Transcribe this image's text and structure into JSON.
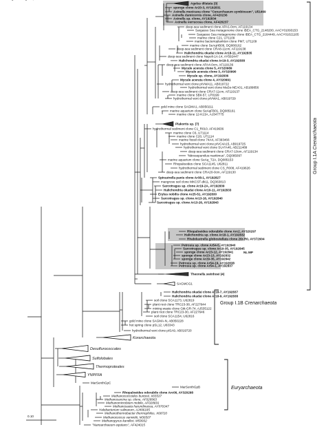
{
  "groups": {
    "i1a_prefix": "Group I.1A ",
    "i1a_taxon": "Crenarchaeota",
    "i1b_prefix": "Group I.1B ",
    "i1b_taxon": "Crenarchaeota",
    "euryarchaeota": "Euryarchaeota"
  },
  "annotations": {
    "nl": "NL",
    "mp": "MP",
    "scale": "0.10"
  },
  "leaves": [
    {
      "label": "Agelas dilatata (3)",
      "style": "bold",
      "collapsed": true
    },
    {
      "label": "sponge clone Ar20-3, AY192831",
      "style": "bold"
    },
    {
      "label": "Axinella mexicana clone \"Cenarchaeum symbiosum\", U51469",
      "style": "bold"
    },
    {
      "label": "Axinella damicornis clone, AF420236",
      "style": "bold"
    },
    {
      "label": "Axinella sp. clone, AY192834",
      "style": "bold"
    },
    {
      "label": "Axinella verrucosa clone, AF420237",
      "style": "bold"
    },
    {
      "label": "deep-sea sediment clone APA1-0cm, AF119134",
      "style": "plain"
    },
    {
      "label": "Sargasso Sea metagenome clone IBEA_CTG_2148200, AACY01093153",
      "style": "plain"
    },
    {
      "label": "Sargasso Sea metagenome clone IBEA_CTG_2164449, AACY01021105",
      "style": "plain"
    },
    {
      "label": "marine clone C21, U71109",
      "style": "plain"
    },
    {
      "label": "marine bacterioplankton clone PM7, U71109",
      "style": "plain"
    },
    {
      "label": "marine clone SeAqHB06, DQ080162",
      "style": "plain"
    },
    {
      "label": "deep-sea sediment clone CRA8-11cm, AF119138",
      "style": "plain"
    },
    {
      "label": "Halichondria okadai clone Ar18-11, AY192835",
      "style": "bold"
    },
    {
      "label": "deep-sea sediment clone Napoli-1A-14, AY592447",
      "style": "plain"
    },
    {
      "label": "Halichondria okadai clone Ar19-3, AY192838",
      "style": "bold"
    },
    {
      "label": "deep-sea sediment clone APA4-0cm, AF119136",
      "style": "plain"
    },
    {
      "label": "Mycale acerata clone 5, AY320989",
      "style": "bold"
    },
    {
      "label": "Mycale acerata clone 3, AY320990",
      "style": "bold"
    },
    {
      "label": "Mycale sp. clone, AY192836",
      "style": "bold"
    },
    {
      "label": "Mycale acerata clone 4, AY320991",
      "style": "bold"
    },
    {
      "label": "hydrothermal vent clone pIVWA11, AB019722",
      "style": "plain"
    },
    {
      "label": "hydrothermal vent clone MaSo-NEA01, AB189856",
      "style": "plain"
    },
    {
      "label": "deep-sea sediment clone CRA7-11cm, AF119137",
      "style": "plain"
    },
    {
      "label": "marine clone SBII-57, U78199",
      "style": "plain"
    },
    {
      "label": "hydrothermal vent clone pIVWA1, AB019729",
      "style": "plain"
    },
    {
      "label": "gold mine clone SAGMA1, AB050211",
      "style": "plain"
    },
    {
      "label": "marine aquarium clone SeAqFB01, DQ085161",
      "style": "plain"
    },
    {
      "label": "marine clone 12-K13A, AJ347775",
      "style": "plain"
    },
    {
      "label": "Plakortis sp. (7)",
      "style": "bold",
      "collapsed": true
    },
    {
      "label": "hydrothermal sediment clone C1_R010, AF419636",
      "style": "plain"
    },
    {
      "label": "marine clone C6, U71114",
      "style": "plain"
    },
    {
      "label": "marine clone C20, U71114",
      "style": "plain"
    },
    {
      "label": "marine fossil clone 74A4, AF393466",
      "style": "plain"
    },
    {
      "label": "hydrothermal vent clone pIVC4A15, AB019725",
      "style": "plain"
    },
    {
      "label": "hydrothermal vent clone SU-FA46, AB211489",
      "style": "plain"
    },
    {
      "label": "deep-sea sediment clone CRA7-10cm, AF119134",
      "style": "plain"
    },
    {
      "label": "\"Nitrosopumilus maritimus\", DQ085097",
      "style": "plain"
    },
    {
      "label": "marine aquarium clone SeAq_T2A, DQ085153",
      "style": "plain"
    },
    {
      "label": "Rhopaloeides clone SCA1145, U62811",
      "style": "plain"
    },
    {
      "label": "hydrothermal sediment clone CS_R008, AF419626",
      "style": "plain"
    },
    {
      "label": "deep-sea sediment clone CRA20-0cm, AF119130",
      "style": "plain"
    },
    {
      "label": "Spirastrella panis clone Ar38-1, AY192827",
      "style": "bold"
    },
    {
      "label": "mangrove soil clone MKCST-dk11, DQ363813",
      "style": "plain"
    },
    {
      "label": "Sarcotragus sp. clone Ar19-2A, AY192839",
      "style": "bold"
    },
    {
      "label": "Halichondria okadai clone Ar10-11, AY192833",
      "style": "bold"
    },
    {
      "label": "Erylus nobilis clone Ar25-51, AY192830",
      "style": "bold"
    },
    {
      "label": "Sarcotragus sp. clone Ar13-16, AY192840",
      "style": "bold"
    },
    {
      "label": "Sarcotragus sp. clone Ar13-26, AY192843",
      "style": "bold"
    },
    {
      "label": "Rhopaloeides odorabile clone Arc2, AY320297",
      "style": "bold"
    },
    {
      "label": "Halichondria sp. clone Ar18-1, AY192832",
      "style": "bold"
    },
    {
      "label": "Rhabdastrella globostellata clone 26r-R0, AY372904",
      "style": "bold"
    },
    {
      "label": "Petrosia sp. clone Ar54-5, AY192840",
      "style": "bold"
    },
    {
      "label": "Sarcotragus sp. clone Ar19-35, AY192845",
      "style": "bold"
    },
    {
      "label": "sponge clone Ar23-12, AY192841",
      "style": "bold"
    },
    {
      "label": "sponge clone Ar23-13, AY192832",
      "style": "bold"
    },
    {
      "label": "sponge clone Ar29-35, AY192842",
      "style": "bold"
    },
    {
      "label": "Petrosia sp. clone Ar54-19, AY192838",
      "style": "bold"
    },
    {
      "label": "Petrosia sp. clone Ar54-1, AY192837",
      "style": "bold"
    },
    {
      "label": "Theonella swinhoei (4)",
      "style": "bold",
      "collapsed": true
    },
    {
      "label": "SAGMCG1",
      "style": "plain",
      "collapsed": true
    },
    {
      "label": "Halichondria okadai clone Ar18-7, AY192837",
      "style": "bold"
    },
    {
      "label": "Halichondria okadai clone Ar18-9, AY192838",
      "style": "bold"
    },
    {
      "label": "soil clone SCA1173, U62819",
      "style": "plain"
    },
    {
      "label": "plant root clone TRC23-38, AF227644",
      "style": "plain"
    },
    {
      "label": "mining waste clone Gitt-GR-74, AJ535122",
      "style": "plain"
    },
    {
      "label": "plant root clone TRC23-30, AF227646",
      "style": "plain"
    },
    {
      "label": "soil clone SCA1154, U62816",
      "style": "plain"
    },
    {
      "label": "gold mine clone SAGMA-N, AB050228",
      "style": "plain"
    },
    {
      "label": "hot spring clone pSL12, U63343",
      "style": "plain"
    },
    {
      "label": "hydrothermal vent clone pISA9, AB019720",
      "style": "plain"
    },
    {
      "label": "Korarchaeota",
      "style": "italic",
      "collapsed": true
    },
    {
      "label": "Desulfurococcales",
      "style": "italic",
      "collapsed": true
    },
    {
      "label": "Sulfolobales",
      "style": "italic",
      "collapsed": true
    },
    {
      "label": "Thermoproteales",
      "style": "italic",
      "collapsed": true
    },
    {
      "label": "YNPFFA",
      "style": "plain",
      "collapsed": true
    },
    {
      "label": "MarSenthGpC",
      "style": "plain"
    },
    {
      "label": "MarSenthGpB",
      "style": "plain"
    },
    {
      "label": "Rhopaloeides odorabile clone Arc06, AY320298",
      "style": "bold"
    },
    {
      "label": "Methanococcoides burtonii, X65537",
      "style": "italic"
    },
    {
      "label": "Methanosarcina sp. clone, AF028963",
      "style": "italic"
    },
    {
      "label": "Methanomicrobium mobile, AF028691",
      "style": "italic"
    },
    {
      "label": "Methanosaeta harundinacea, AY970347",
      "style": "italic"
    },
    {
      "label": "Halobacterium salinarum, AJ496185",
      "style": "italic"
    },
    {
      "label": "Methanothermobacter thermophilus, X68720",
      "style": "italic"
    },
    {
      "label": "Methanococcus vannielii, M36507",
      "style": "italic"
    },
    {
      "label": "Methanopyrus kandleri, M59932",
      "style": "italic"
    },
    {
      "label": "\"Nanoarchaeum equitans\", AF424015",
      "style": "italic"
    },
    {
      "label": "Archaeoglobus fulgidus, X05567",
      "style": "italic"
    }
  ]
}
